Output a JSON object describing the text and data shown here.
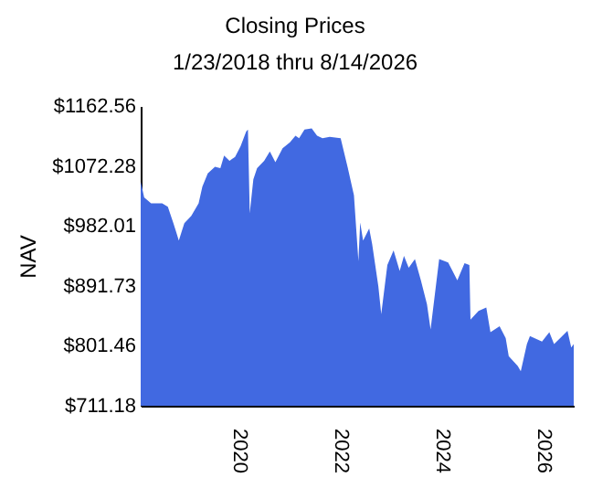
{
  "chart_data": {
    "type": "area",
    "title": "Closing Prices",
    "subtitle": "1/23/2018 thru 8/14/2026",
    "ylabel": "NAV",
    "x": [
      "2018-01-23",
      "2018-02-17",
      "2018-04-08",
      "2018-06-27",
      "2018-08-07",
      "2018-09-16",
      "2018-10-12",
      "2018-10-25",
      "2018-12-04",
      "2019-01-23",
      "2019-03-17",
      "2019-04-13",
      "2019-05-22",
      "2019-07-13",
      "2019-08-21",
      "2019-09-17",
      "2019-10-26",
      "2019-12-05",
      "2020-01-14",
      "2020-02-23",
      "2020-03-07",
      "2020-03-20",
      "2020-04-15",
      "2020-05-12",
      "2020-07-02",
      "2020-08-12",
      "2020-09-21",
      "2020-11-12",
      "2021-01-04",
      "2021-02-13",
      "2021-03-11",
      "2021-04-19",
      "2021-06-10",
      "2021-07-19",
      "2021-08-27",
      "2021-10-18",
      "2022-01-05",
      "2022-02-26",
      "2022-04-11",
      "2022-05-13",
      "2022-05-26",
      "2022-06-16",
      "2022-07-30",
      "2022-08-20",
      "2022-10-04",
      "2022-10-25",
      "2022-12-08",
      "2023-01-22",
      "2023-03-07",
      "2023-04-07",
      "2023-05-11",
      "2023-06-25",
      "2023-08-07",
      "2023-09-20",
      "2023-10-16",
      "2023-12-17",
      "2024-02-20",
      "2024-04-26",
      "2024-06-17",
      "2024-07-22",
      "2024-07-30",
      "2024-09-26",
      "2024-11-21",
      "2024-12-21",
      "2025-02-25",
      "2025-04-10",
      "2025-05-02",
      "2025-07-06",
      "2025-07-28",
      "2025-09-10",
      "2025-10-02",
      "2025-12-28",
      "2026-02-19",
      "2026-03-25",
      "2026-05-08",
      "2026-06-30",
      "2026-07-27",
      "2026-08-14"
    ],
    "series": [
      {
        "color": "#4169e1",
        "values": [
          1049,
          1025,
          1016,
          1016,
          1011,
          986,
          969,
          960,
          986,
          997,
          1016,
          1041,
          1061,
          1071,
          1069,
          1088,
          1080,
          1086,
          1102,
          1124,
          1127,
          1001,
          1052,
          1069,
          1080,
          1094,
          1078,
          1099,
          1108,
          1118,
          1114,
          1127,
          1129,
          1118,
          1114,
          1116,
          1114,
          1069,
          1028,
          929,
          987,
          960,
          978,
          955,
          891,
          849,
          923,
          945,
          914,
          937,
          919,
          932,
          900,
          864,
          826,
          932,
          927,
          900,
          926,
          923,
          841,
          854,
          859,
          822,
          831,
          813,
          786,
          771,
          763,
          804,
          816,
          808,
          822,
          804,
          813,
          824,
          799,
          804
        ]
      }
    ],
    "xlim": [
      "2018-01-23",
      "2026-08-14"
    ],
    "xticks": [
      {
        "value": "2020-01-01",
        "label": "2020"
      },
      {
        "value": "2022-01-01",
        "label": "2022"
      },
      {
        "value": "2024-01-01",
        "label": "2024"
      },
      {
        "value": "2026-01-01",
        "label": "2026"
      }
    ],
    "ylim": [
      711.18,
      1162.56
    ],
    "yticks": [
      {
        "value": 711.18,
        "label": "$711.18"
      },
      {
        "value": 801.46,
        "label": "$801.46"
      },
      {
        "value": 891.73,
        "label": "$891.73"
      },
      {
        "value": 982.01,
        "label": "$982.01"
      },
      {
        "value": 1072.28,
        "label": "$1072.28"
      },
      {
        "value": 1162.56,
        "label": "$1162.56"
      }
    ],
    "grid": false
  }
}
